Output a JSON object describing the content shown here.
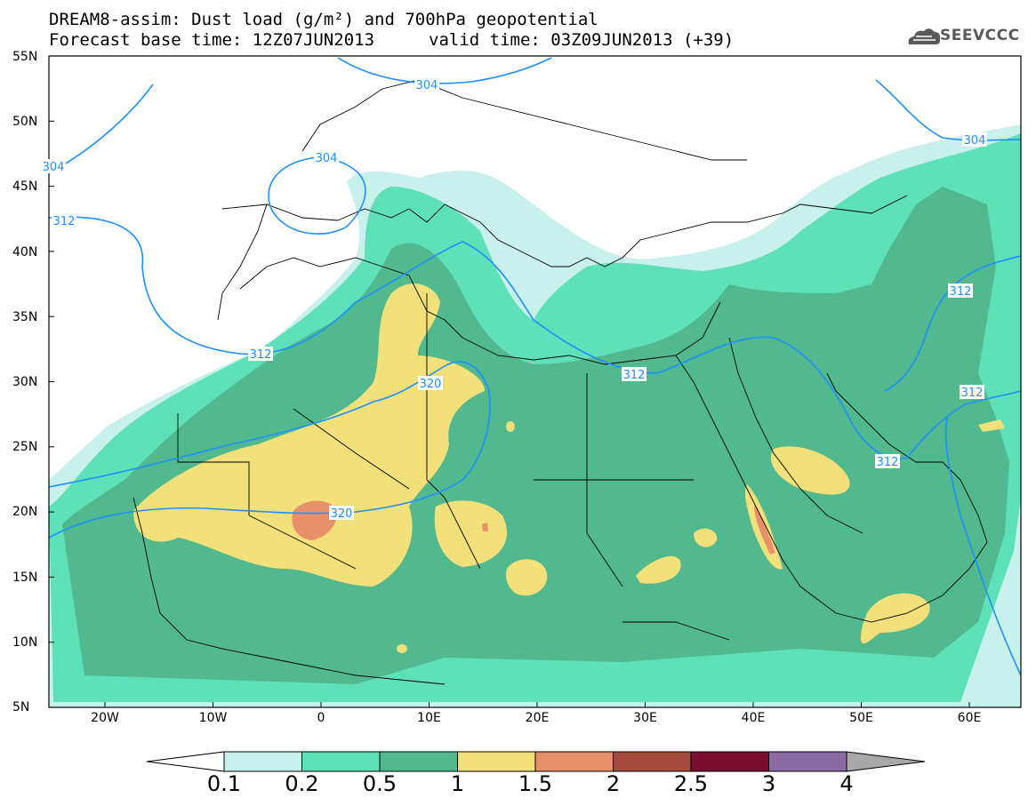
{
  "header": {
    "line1": "DREAM8-assim: Dust load (g/m²) and 700hPa geopotential",
    "line2_base": "Forecast base time: 12Z07JUN2013",
    "line2_valid": "valid time: 03Z09JUN2013 (+39)"
  },
  "logo": {
    "text": "SEEVCCC",
    "icon": "cloud-logo-icon"
  },
  "map": {
    "region": "Europe, North Africa, Middle East",
    "lat_labels": [
      "55N",
      "50N",
      "45N",
      "40N",
      "35N",
      "30N",
      "25N",
      "20N",
      "15N",
      "10N",
      "5N"
    ],
    "lon_labels": [
      "20W",
      "10W",
      "0",
      "10E",
      "20E",
      "30E",
      "40E",
      "50E",
      "60E"
    ],
    "contour_labels": [
      "304",
      "304",
      "304",
      "304",
      "312",
      "312",
      "312",
      "312",
      "312",
      "312",
      "320",
      "320"
    ],
    "geopotential_color": "#1e90ff"
  },
  "colorbar": {
    "labels": [
      "0.1",
      "0.2",
      "0.5",
      "1",
      "1.5",
      "2",
      "2.5",
      "3",
      "4"
    ],
    "colors": [
      "#c8f0ec",
      "#5ee0b8",
      "#52b88e",
      "#f2e07a",
      "#e8906a",
      "#a64a3e",
      "#7a0e30",
      "#8a6aa0",
      "#a8a8a8"
    ]
  }
}
